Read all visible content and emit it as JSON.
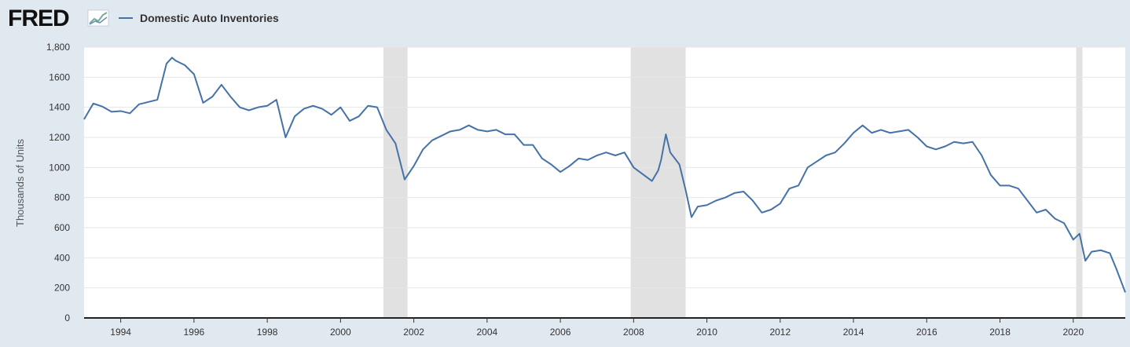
{
  "chart_data": {
    "type": "line",
    "brand": "FRED",
    "ylabel": "Thousands of Units",
    "xlim": [
      1993,
      2021.42
    ],
    "ylim": [
      0,
      1800
    ],
    "xticks": [
      1994,
      1996,
      1998,
      2000,
      2002,
      2004,
      2006,
      2008,
      2010,
      2012,
      2014,
      2016,
      2018,
      2020
    ],
    "yticks": [
      0,
      200,
      400,
      600,
      800,
      1000,
      1200,
      1400,
      1600,
      {
        "value": 1800,
        "label": "1,800"
      }
    ],
    "grid": true,
    "recessions": [
      [
        2001.17,
        2001.83
      ],
      [
        2007.92,
        2009.42
      ],
      [
        2020.08,
        2020.25
      ]
    ],
    "x": [
      1993,
      1993.25,
      1993.5,
      1993.75,
      1994,
      1994.25,
      1994.5,
      1994.75,
      1995,
      1995.25,
      1995.4,
      1995.5,
      1995.75,
      1996,
      1996.25,
      1996.5,
      1996.75,
      1997,
      1997.25,
      1997.5,
      1997.75,
      1998,
      1998.25,
      1998.5,
      1998.75,
      1999,
      1999.25,
      1999.5,
      1999.75,
      2000,
      2000.25,
      2000.5,
      2000.75,
      2001,
      2001.25,
      2001.5,
      2001.75,
      2002,
      2002.25,
      2002.5,
      2002.75,
      2003,
      2003.25,
      2003.5,
      2003.75,
      2004,
      2004.25,
      2004.5,
      2004.75,
      2005,
      2005.25,
      2005.5,
      2005.75,
      2006,
      2006.25,
      2006.5,
      2006.75,
      2007,
      2007.25,
      2007.5,
      2007.75,
      2008,
      2008.25,
      2008.5,
      2008.67,
      2008.75,
      2008.88,
      2009,
      2009.25,
      2009.42,
      2009.58,
      2009.75,
      2010,
      2010.25,
      2010.5,
      2010.75,
      2011,
      2011.25,
      2011.5,
      2011.75,
      2012,
      2012.25,
      2012.5,
      2012.75,
      2013,
      2013.25,
      2013.5,
      2013.75,
      2014,
      2014.25,
      2014.5,
      2014.75,
      2015,
      2015.25,
      2015.5,
      2015.75,
      2016,
      2016.25,
      2016.5,
      2016.75,
      2017,
      2017.25,
      2017.5,
      2017.75,
      2018,
      2018.25,
      2018.5,
      2018.75,
      2019,
      2019.25,
      2019.5,
      2019.75,
      2020,
      2020.17,
      2020.33,
      2020.5,
      2020.75,
      2021,
      2021.17,
      2021.42
    ],
    "series": [
      {
        "name": "Domestic Auto Inventories",
        "color": "#4572a7",
        "values": [
          1320,
          1425,
          1405,
          1370,
          1375,
          1360,
          1420,
          1435,
          1450,
          1690,
          1730,
          1710,
          1680,
          1620,
          1430,
          1470,
          1550,
          1470,
          1400,
          1380,
          1400,
          1410,
          1450,
          1200,
          1340,
          1390,
          1410,
          1390,
          1350,
          1400,
          1310,
          1340,
          1410,
          1400,
          1250,
          1160,
          920,
          1010,
          1120,
          1180,
          1210,
          1240,
          1250,
          1280,
          1250,
          1240,
          1250,
          1220,
          1220,
          1150,
          1150,
          1060,
          1020,
          970,
          1010,
          1060,
          1050,
          1080,
          1100,
          1080,
          1100,
          1000,
          955,
          910,
          980,
          1050,
          1220,
          1100,
          1020,
          850,
          670,
          740,
          750,
          780,
          800,
          830,
          840,
          780,
          700,
          720,
          760,
          860,
          880,
          1000,
          1040,
          1080,
          1100,
          1160,
          1230,
          1280,
          1230,
          1250,
          1230,
          1240,
          1250,
          1200,
          1140,
          1120,
          1140,
          1170,
          1160,
          1170,
          1080,
          950,
          880,
          880,
          860,
          780,
          700,
          720,
          660,
          630,
          520,
          560,
          380,
          440,
          450,
          430,
          330,
          170
        ]
      }
    ]
  }
}
